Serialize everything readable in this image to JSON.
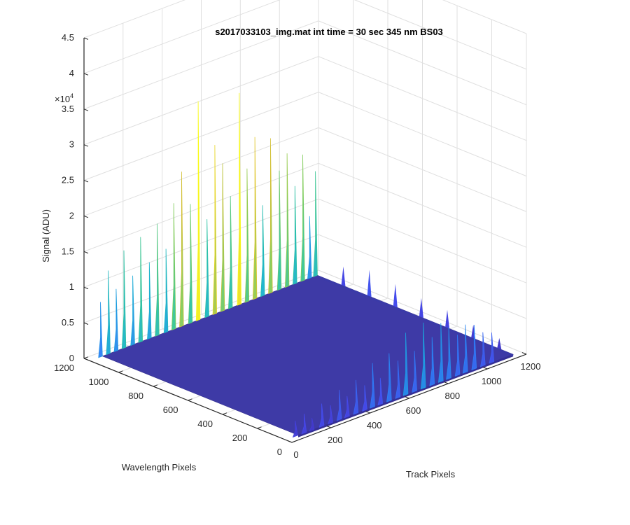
{
  "chart_data": {
    "type": "surface",
    "title": "s2017033103_img.mat int time = 30 sec  345 nm BS03",
    "xlabel": "Track Pixels",
    "ylabel": "Wavelength Pixels",
    "zlabel": "Signal (ADU)",
    "z_multiplier_label": "×10",
    "z_multiplier_exponent": "4",
    "xlim": [
      0,
      1200
    ],
    "ylim": [
      0,
      1200
    ],
    "zlim": [
      0,
      45000
    ],
    "x_ticks": [
      "0",
      "200",
      "400",
      "600",
      "800",
      "1000",
      "1200"
    ],
    "y_ticks": [
      "0",
      "200",
      "400",
      "600",
      "800",
      "1000",
      "1200"
    ],
    "z_ticks": [
      "0",
      "0.5",
      "1",
      "1.5",
      "2",
      "2.5",
      "3",
      "3.5",
      "4",
      "4.5"
    ],
    "grid": true,
    "colormap": "parula",
    "data_extent": {
      "x": [
        50,
        1150
      ],
      "y": [
        20,
        1150
      ]
    },
    "baseline_signal": 300,
    "peaks_near_wavelength_0": {
      "track_pixels": [
        35,
        80,
        120,
        170,
        215,
        260,
        300,
        345,
        390,
        430,
        470,
        515,
        560,
        600,
        645,
        690,
        735,
        780,
        820,
        865,
        905,
        950,
        995,
        1040
      ],
      "signal": [
        2500,
        3000,
        2000,
        3500,
        2800,
        4500,
        3200,
        5000,
        3800,
        6500,
        4000,
        7000,
        5500,
        9000,
        6000,
        9500,
        7000,
        8500,
        7500,
        6000,
        7000,
        6500,
        5000,
        4500
      ]
    },
    "peaks_near_wavelength_1150": {
      "track_pixels": [
        40,
        80,
        120,
        160,
        205,
        245,
        290,
        330,
        375,
        415,
        455,
        500,
        540,
        585,
        625,
        665,
        705,
        750,
        790,
        830,
        870,
        910,
        955,
        995,
        1035,
        1075,
        1110,
        1140
      ],
      "signal": [
        8000,
        12000,
        9000,
        14000,
        10000,
        15000,
        11000,
        16000,
        12000,
        18000,
        22000,
        17000,
        31000,
        14000,
        24000,
        21000,
        16000,
        30000,
        19000,
        23000,
        13000,
        22000,
        17000,
        19000,
        14000,
        18000,
        9000,
        15000
      ]
    },
    "ridge_near_track_1150": {
      "wavelength_pixels": [
        100,
        250,
        400,
        550,
        700,
        850,
        1000
      ],
      "signal": [
        1800,
        2200,
        2800,
        3000,
        3500,
        4000,
        3000
      ]
    }
  }
}
